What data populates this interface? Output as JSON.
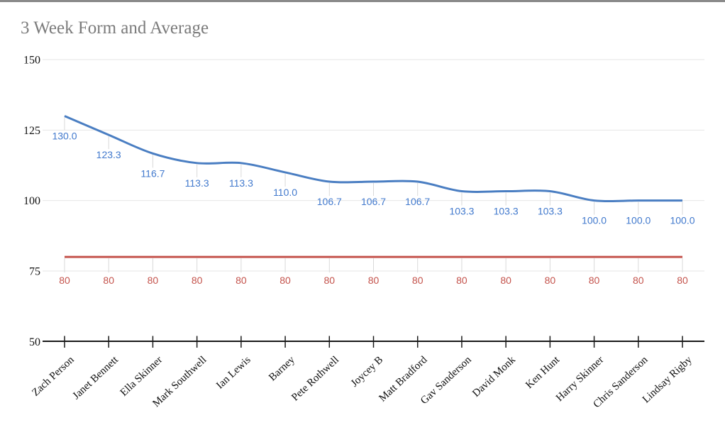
{
  "page": {
    "top_border_color": "#8a8a8a",
    "background_color": "#ffffff"
  },
  "chart_data": {
    "type": "line",
    "title": "3 Week Form and Average",
    "title_color": "#7b7b7b",
    "xlabel": "",
    "ylabel": "",
    "ylim": [
      50,
      150
    ],
    "yticks": [
      50,
      75,
      100,
      125,
      150
    ],
    "ytick_labels": [
      "50",
      "75",
      "100",
      "125",
      "150"
    ],
    "grid": true,
    "legend": "none",
    "gridline_color": "#e6e6e6",
    "axis_color": "#1a1a1a",
    "axis_text_color": "#111111",
    "stem_color": "#d9d9d9",
    "categories": [
      "Zach Person",
      "Janet Bennett",
      "Ella Skinner",
      "Mark Southwell",
      "Ian Lewis",
      "Barney",
      "Pete Rothwell",
      "Joycey B",
      "Matt Bradford",
      "Gav Sanderson",
      "David Monk",
      "Ken Hunt",
      "Harry Skinner",
      "Chris Sanderson",
      "Lindsay Rigby"
    ],
    "series": [
      {
        "id": "form",
        "color": "#4a7ec2",
        "label_color": "#4179cd",
        "smooth": true,
        "values": [
          130.0,
          123.3,
          116.7,
          113.3,
          113.3,
          110.0,
          106.7,
          106.7,
          106.7,
          103.3,
          103.3,
          103.3,
          100.0,
          100.0,
          100.0
        ],
        "labels": [
          "130.0",
          "123.3",
          "116.7",
          "113.3",
          "113.3",
          "110.0",
          "106.7",
          "106.7",
          "106.7",
          "103.3",
          "103.3",
          "103.3",
          "100.0",
          "100.0",
          "100.0"
        ]
      },
      {
        "id": "average",
        "color": "#c4534c",
        "label_color": "#c4534c",
        "smooth": false,
        "values": [
          80,
          80,
          80,
          80,
          80,
          80,
          80,
          80,
          80,
          80,
          80,
          80,
          80,
          80,
          80
        ],
        "labels": [
          "80",
          "80",
          "80",
          "80",
          "80",
          "80",
          "80",
          "80",
          "80",
          "80",
          "80",
          "80",
          "80",
          "80",
          "80"
        ]
      }
    ]
  }
}
